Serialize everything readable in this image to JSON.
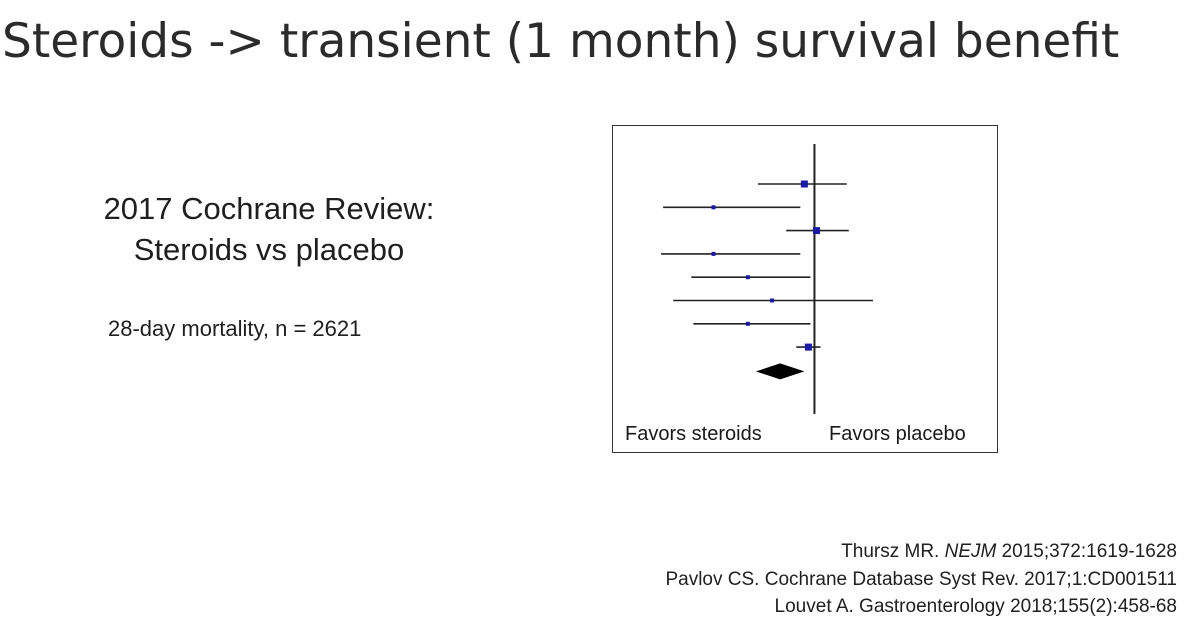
{
  "slide": {
    "title": "Steroids -> transient (1 month) survival benefit",
    "subtitle_line1": "2017 Cochrane Review:",
    "subtitle_line2": "Steroids vs placebo",
    "note": "28-day mortality, n = 2621"
  },
  "forest_plot": {
    "label_left": "Favors steroids",
    "label_right": "Favors placebo",
    "colors": {
      "point": "#1a1aa6",
      "line": "#222222",
      "diamond": "#000000"
    }
  },
  "chart_data": {
    "type": "forest",
    "x_scale": "relative effect (unlabeled), null line = 1",
    "null_line": 1,
    "studies": [
      {
        "estimate": 0.95,
        "lower": 0.72,
        "upper": 1.16,
        "weight": "large"
      },
      {
        "estimate": 0.5,
        "lower": 0.25,
        "upper": 0.93,
        "weight": "small"
      },
      {
        "estimate": 1.01,
        "lower": 0.86,
        "upper": 1.17,
        "weight": "large"
      },
      {
        "estimate": 0.5,
        "lower": 0.24,
        "upper": 0.93,
        "weight": "small"
      },
      {
        "estimate": 0.67,
        "lower": 0.39,
        "upper": 0.98,
        "weight": "small"
      },
      {
        "estimate": 0.79,
        "lower": 0.3,
        "upper": 1.29,
        "weight": "small"
      },
      {
        "estimate": 0.67,
        "lower": 0.4,
        "upper": 0.98,
        "weight": "small"
      },
      {
        "estimate": 0.97,
        "lower": 0.91,
        "upper": 1.03,
        "weight": "large"
      }
    ],
    "pooled": {
      "estimate": 0.83,
      "lower": 0.71,
      "upper": 0.95
    }
  },
  "references": {
    "ref1_prefix": "Thursz MR. ",
    "ref1_journal": "NEJM",
    "ref1_suffix": " 2015;372:1619-1628",
    "ref2": "Pavlov CS. Cochrane Database Syst Rev. 2017;1:CD001511",
    "ref3": "Louvet A. Gastroenterology 2018;155(2):458-68"
  }
}
